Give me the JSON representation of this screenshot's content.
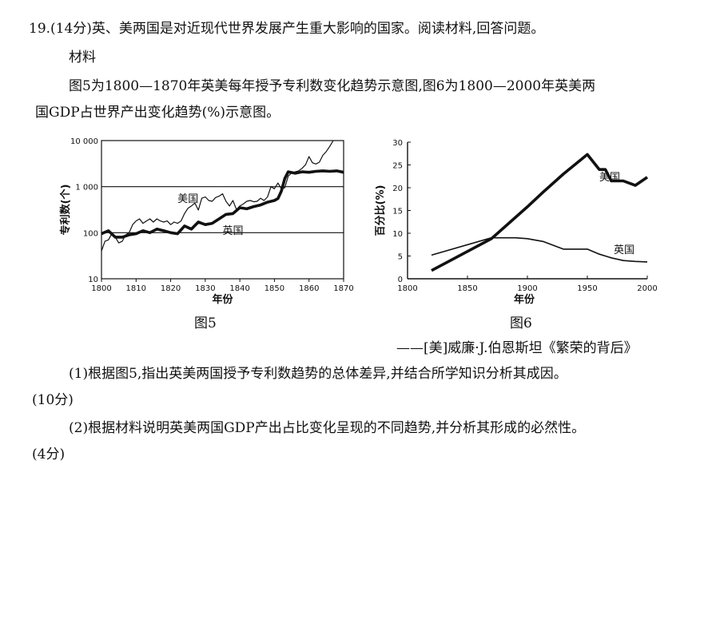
{
  "question": {
    "header": "19.(14分)英、美两国是对近现代世界发展产生重大影响的国家。阅读材料,回答问题。",
    "material_label": "材料",
    "intro_line1": "图5为1800—1870年英美每年授予专利数变化趋势示意图,图6为1800—2000年英美两",
    "intro_line2": "国GDP占世界产出变化趋势(%)示意图。",
    "source": "——[美]威廉·J.伯恩斯坦《繁荣的背后》",
    "q1_line1": "(1)根据图5,指出英美两国授予专利数趋势的总体差异,并结合所学知识分析其成因。",
    "q1_line2": "(10分)",
    "q2_line1": "(2)根据材料说明英美两国GDP产出占比变化呈现的不同趋势,并分析其形成的必然性。",
    "q2_line2": "(4分)"
  },
  "chart_data": [
    {
      "type": "line",
      "caption": "图5",
      "xlabel": "年份",
      "ylabel": "专利数(个)",
      "yscale": "log",
      "xlim": [
        1800,
        1870
      ],
      "ylim": [
        10,
        10000
      ],
      "xticks": [
        "1800",
        "1810",
        "1820",
        "1830",
        "1840",
        "1850",
        "1860",
        "1870"
      ],
      "yticks": [
        "10",
        "100",
        "1 000",
        "10 000"
      ],
      "grid_y_values": [
        100,
        1000
      ],
      "series": [
        {
          "name": "美国",
          "style": "thin",
          "x": [
            1800,
            1801,
            1802,
            1803,
            1804,
            1805,
            1806,
            1807,
            1808,
            1809,
            1810,
            1811,
            1812,
            1813,
            1814,
            1815,
            1816,
            1817,
            1818,
            1819,
            1820,
            1821,
            1822,
            1823,
            1824,
            1825,
            1826,
            1827,
            1828,
            1829,
            1830,
            1831,
            1832,
            1833,
            1834,
            1835,
            1836,
            1837,
            1838,
            1839,
            1840,
            1841,
            1842,
            1843,
            1844,
            1845,
            1846,
            1847,
            1848,
            1849,
            1850,
            1851,
            1852,
            1853,
            1854,
            1855,
            1856,
            1857,
            1858,
            1859,
            1860,
            1861,
            1862,
            1863,
            1864,
            1865,
            1866,
            1867
          ],
          "y": [
            40,
            65,
            70,
            95,
            80,
            60,
            65,
            90,
            100,
            150,
            180,
            200,
            160,
            180,
            200,
            170,
            200,
            180,
            170,
            180,
            150,
            170,
            160,
            180,
            260,
            340,
            380,
            440,
            310,
            560,
            600,
            500,
            480,
            580,
            620,
            700,
            480,
            380,
            500,
            320,
            380,
            420,
            480,
            500,
            470,
            480,
            560,
            500,
            600,
            1000,
            900,
            1200,
            900,
            950,
            1700,
            2000,
            2100,
            2200,
            2500,
            3000,
            4500,
            3300,
            3100,
            3400,
            4800,
            5800,
            7500,
            10000
          ]
        },
        {
          "name": "英国",
          "style": "thick",
          "x": [
            1800,
            1802,
            1804,
            1806,
            1808,
            1810,
            1812,
            1814,
            1816,
            1818,
            1820,
            1822,
            1824,
            1826,
            1828,
            1830,
            1832,
            1834,
            1836,
            1838,
            1840,
            1842,
            1844,
            1846,
            1848,
            1850,
            1851,
            1852,
            1853,
            1854,
            1856,
            1858,
            1860,
            1862,
            1864,
            1866,
            1868,
            1870
          ],
          "y": [
            95,
            110,
            80,
            80,
            90,
            95,
            110,
            100,
            120,
            110,
            100,
            95,
            140,
            120,
            170,
            150,
            160,
            200,
            250,
            260,
            350,
            330,
            370,
            400,
            460,
            500,
            550,
            800,
            1500,
            2100,
            1950,
            2100,
            2050,
            2150,
            2200,
            2150,
            2200,
            2050
          ]
        }
      ]
    },
    {
      "type": "line",
      "caption": "图6",
      "xlabel": "年份",
      "ylabel": "百分比(%)",
      "xlim": [
        1800,
        2000
      ],
      "ylim": [
        0,
        30
      ],
      "xticks": [
        1800,
        1850,
        1900,
        1950,
        2000
      ],
      "yticks": [
        0,
        5,
        10,
        15,
        20,
        25,
        30
      ],
      "series": [
        {
          "name": "美国",
          "style": "thick",
          "x": [
            1820,
            1870,
            1900,
            1913,
            1930,
            1950,
            1960,
            1965,
            1970,
            1980,
            1990,
            2000
          ],
          "y": [
            1.8,
            8.8,
            15.8,
            19,
            23,
            27.3,
            24,
            24,
            21.5,
            21.5,
            20.5,
            22.3
          ]
        },
        {
          "name": "英国",
          "style": "thin",
          "x": [
            1820,
            1870,
            1890,
            1900,
            1913,
            1930,
            1950,
            1960,
            1970,
            1980,
            1990,
            2000
          ],
          "y": [
            5.2,
            9,
            9,
            8.8,
            8.2,
            6.5,
            6.5,
            5.4,
            4.6,
            4,
            3.8,
            3.7
          ]
        }
      ]
    }
  ]
}
